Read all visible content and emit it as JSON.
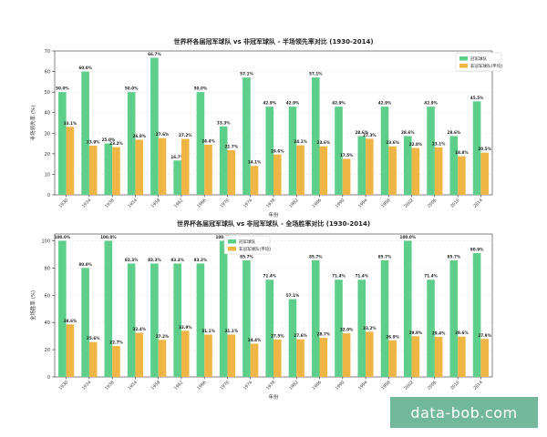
{
  "watermark": "data-bob.com",
  "colors": {
    "champion": "#5dcf8a",
    "non_champion": "#efb545",
    "axis": "#333333",
    "grid": "#dddddd",
    "watermark_bg": "#72b89a"
  },
  "chart_data": [
    {
      "type": "bar",
      "title": "世界杯各届冠军球队 vs 非冠军球队 - 半场领先率对比 (1930-2014)",
      "xlabel": "年份",
      "ylabel": "半场领先率 (%)",
      "ylim": [
        0,
        70
      ],
      "yticks": [
        0,
        10,
        20,
        30,
        40,
        50,
        60,
        70
      ],
      "legend_position": "top-right",
      "categories": [
        "1930",
        "1934",
        "1938",
        "1954",
        "1958",
        "1962",
        "1966",
        "1970",
        "1974",
        "1978",
        "1982",
        "1986",
        "1990",
        "1994",
        "1998",
        "2002",
        "2006",
        "2010",
        "2014"
      ],
      "series": [
        {
          "name": "冠军球队",
          "values": [
            50.0,
            60.0,
            25.0,
            50.0,
            66.7,
            16.7,
            50.0,
            33.3,
            57.1,
            42.9,
            42.9,
            57.1,
            42.9,
            28.6,
            42.9,
            28.6,
            42.9,
            28.6,
            45.5
          ],
          "labels": [
            "50.0%",
            "60.0%",
            "25.0%",
            "50.0%",
            "66.7%",
            "16.7%",
            "50.0%",
            "33.3%",
            "57.1%",
            "42.9%",
            "42.9%",
            "57.1%",
            "42.9%",
            "28.6%",
            "42.9%",
            "28.6%",
            "42.9%",
            "28.6%",
            "45.5%"
          ]
        },
        {
          "name": "非冠军球队(平均)",
          "values": [
            33.1,
            23.9,
            23.2,
            26.8,
            27.6,
            27.2,
            24.4,
            21.7,
            14.1,
            19.6,
            24.1,
            23.6,
            17.5,
            27.3,
            23.6,
            22.8,
            23.1,
            18.8,
            20.5
          ],
          "labels": [
            "33.1%",
            "23.9%",
            "23.2%",
            "26.8%",
            "27.6%",
            "27.2%",
            "24.4%",
            "21.7%",
            "14.1%",
            "19.6%",
            "24.1%",
            "23.6%",
            "17.5%",
            "27.3%",
            "23.6%",
            "22.8%",
            "23.1%",
            "18.8%",
            "20.5%"
          ]
        }
      ]
    },
    {
      "type": "bar",
      "title": "世界杯各届冠军球队 vs 非冠军球队 - 全场胜率对比 (1930-2014)",
      "xlabel": "年份",
      "ylabel": "全场胜率 (%)",
      "ylim": [
        0,
        105
      ],
      "yticks": [
        0,
        20,
        40,
        60,
        80,
        100
      ],
      "legend_position": "top-center",
      "categories": [
        "1930",
        "1934",
        "1938",
        "1954",
        "1958",
        "1962",
        "1966",
        "1970",
        "1974",
        "1978",
        "1982",
        "1986",
        "1990",
        "1994",
        "1998",
        "2002",
        "2006",
        "2010",
        "2014"
      ],
      "series": [
        {
          "name": "冠军球队",
          "values": [
            100.0,
            80.0,
            100.0,
            83.3,
            83.3,
            83.3,
            83.3,
            100.0,
            85.7,
            71.4,
            57.1,
            85.7,
            71.4,
            71.4,
            85.7,
            100.0,
            71.4,
            85.7,
            90.9
          ],
          "labels": [
            "100.0%",
            "80.0%",
            "100.0%",
            "83.3%",
            "83.3%",
            "83.3%",
            "83.3%",
            "100.0%",
            "85.7%",
            "71.4%",
            "57.1%",
            "85.7%",
            "71.4%",
            "71.4%",
            "85.7%",
            "100.0%",
            "71.4%",
            "85.7%",
            "90.9%"
          ]
        },
        {
          "name": "非冠军球队(平均)",
          "values": [
            38.6,
            25.6,
            22.7,
            32.4,
            27.2,
            33.9,
            31.1,
            31.1,
            24.4,
            27.5,
            27.6,
            28.7,
            32.0,
            33.2,
            26.9,
            29.9,
            29.4,
            29.6,
            27.9
          ],
          "labels": [
            "38.6%",
            "25.6%",
            "22.7%",
            "32.4%",
            "27.2%",
            "33.9%",
            "31.1%",
            "31.1%",
            "24.4%",
            "27.5%",
            "27.6%",
            "28.7%",
            "32.0%",
            "33.2%",
            "26.9%",
            "29.9%",
            "29.4%",
            "29.6%",
            "27.9%"
          ]
        }
      ]
    }
  ]
}
